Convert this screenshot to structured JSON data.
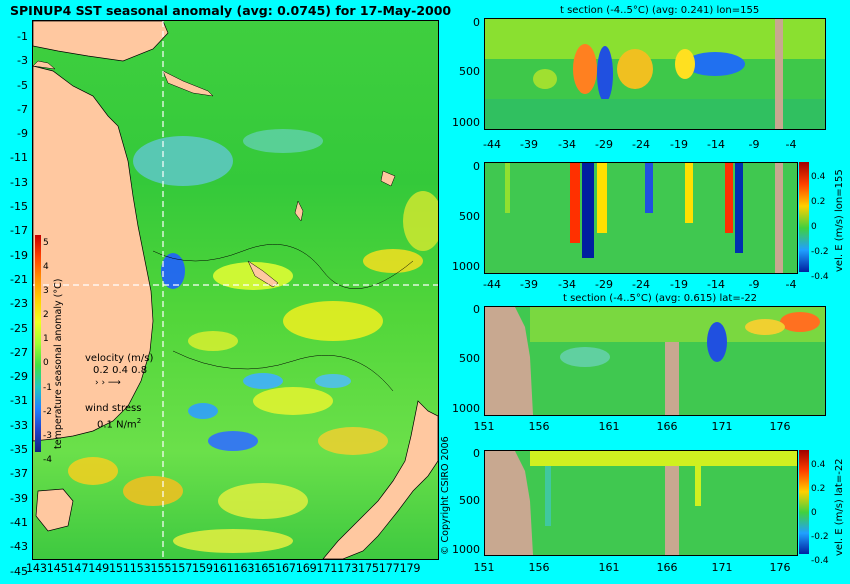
{
  "map": {
    "title": "SPINUP4 SST seasonal anomaly (avg: 0.0745) for 17-May-2000",
    "lat_ticks": [
      "-1",
      "-3",
      "-5",
      "-7",
      "-9",
      "-11",
      "-13",
      "-15",
      "-17",
      "-19",
      "-21",
      "-23",
      "-25",
      "-27",
      "-29",
      "-31",
      "-33",
      "-35",
      "-37",
      "-39",
      "-41",
      "-43",
      "-45"
    ],
    "lon_ticks_text": "143145147149151153155157159161163165167169171173175177179",
    "colorbar": {
      "ticks": [
        "5",
        "4",
        "3",
        "2",
        "1",
        "0",
        "-1",
        "-2",
        "-3",
        "-4"
      ],
      "label": "temperature seasonal anomaly (°C)"
    },
    "velocity_legend": {
      "title": "velocity (m/s)",
      "values": "0.2 0.4 0.8"
    },
    "wind_legend": {
      "title": "wind stress",
      "value": "0.1 N/m",
      "sup": "2"
    },
    "crosshair": {
      "lon": "155",
      "lat": "-22"
    },
    "copyright": "© Copyright CSIRO 2006"
  },
  "panels": {
    "p1": {
      "title": "t section (-4..5°C) (avg: 0.241) lon=155",
      "x_ticks": [
        "-44",
        "-39",
        "-34",
        "-29",
        "-24",
        "-19",
        "-14",
        "-9",
        "-4"
      ],
      "y_ticks": [
        "0",
        "500",
        "1000"
      ]
    },
    "p2": {
      "title": "",
      "x_ticks": [
        "-44",
        "-39",
        "-34",
        "-29",
        "-24",
        "-19",
        "-14",
        "-9",
        "-4"
      ],
      "y_ticks": [
        "0",
        "500",
        "1000"
      ],
      "cbar_ticks": [
        "0.4",
        "0.2",
        "0",
        "-0.2",
        "-0.4"
      ],
      "cbar_label": "vel. E (m/s) lon=155"
    },
    "p3": {
      "title": "t section (-4..5°C) (avg: 0.615) lat=-22",
      "x_ticks": [
        "151",
        "156",
        "161",
        "166",
        "171",
        "176"
      ],
      "y_ticks": [
        "0",
        "500",
        "1000"
      ]
    },
    "p4": {
      "title": "",
      "x_ticks": [
        "151",
        "156",
        "161",
        "166",
        "171",
        "176"
      ],
      "y_ticks": [
        "0",
        "500",
        "1000"
      ],
      "cbar_ticks": [
        "0.4",
        "0.2",
        "0",
        "-0.2",
        "-0.4"
      ],
      "cbar_label": "vel. E (m/s) lat=-22"
    }
  }
}
